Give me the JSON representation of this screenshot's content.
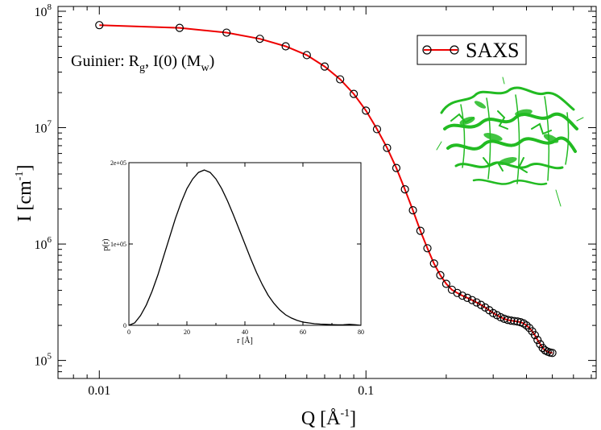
{
  "chart_data": [
    {
      "type": "scatter",
      "xscale": "log",
      "yscale": "log",
      "xlim": [
        0.007,
        0.73
      ],
      "ylim": [
        70000,
        110000000
      ],
      "xticks": [
        0.01,
        0.1
      ],
      "xtick_labels": [
        "0.01",
        "0.1"
      ],
      "yticks": [
        100000,
        1000000,
        10000000,
        100000000
      ],
      "ytick_labels": [
        {
          "base": "10",
          "exp": "5"
        },
        {
          "base": "10",
          "exp": "6"
        },
        {
          "base": "10",
          "exp": "7"
        },
        {
          "base": "10",
          "exp": "8"
        }
      ],
      "xlabel": {
        "main": "Q [Å",
        "sup": "-1",
        "close": "]"
      },
      "ylabel": {
        "main": "I [cm",
        "sup": "-1",
        "close": "]"
      },
      "annotation": {
        "t1": "Guinier: R",
        "s1": "g",
        "t2": ", I(0) (M",
        "s2": "w",
        "t3": ")"
      },
      "legend": {
        "position": "top-right",
        "label": "SAXS"
      },
      "series": [
        {
          "name": "SAXS",
          "line_color": "#ee0000",
          "marker": "open-circle",
          "marker_edge": "#000000",
          "x": [
            0.01,
            0.02,
            0.03,
            0.04,
            0.05,
            0.06,
            0.07,
            0.08,
            0.09,
            0.1,
            0.11,
            0.12,
            0.13,
            0.14,
            0.15,
            0.16,
            0.17,
            0.18,
            0.19,
            0.2,
            0.21,
            0.22,
            0.23,
            0.24,
            0.25,
            0.26,
            0.27,
            0.28,
            0.29,
            0.3,
            0.31,
            0.32,
            0.33,
            0.34,
            0.35,
            0.36,
            0.37,
            0.38,
            0.39,
            0.4,
            0.41,
            0.42,
            0.43,
            0.44,
            0.45,
            0.46,
            0.47,
            0.48,
            0.49,
            0.5
          ],
          "y": [
            76000000,
            72000000,
            65500000,
            58000000,
            50000000,
            42000000,
            33500000,
            26000000,
            19500000,
            14000000,
            9700000,
            6700000,
            4500000,
            2950000,
            1950000,
            1300000,
            920000,
            680000,
            540000,
            455000,
            405000,
            380000,
            360000,
            345000,
            330000,
            315000,
            300000,
            285000,
            270000,
            255000,
            245000,
            235000,
            228000,
            223000,
            220000,
            218000,
            216000,
            213000,
            208000,
            200000,
            190000,
            178000,
            165000,
            150000,
            138000,
            128000,
            122000,
            119000,
            117000,
            116000
          ]
        }
      ]
    },
    {
      "type": "line",
      "xlabel": "r [Å]",
      "ylabel": "p(r)",
      "xlim": [
        0,
        80
      ],
      "ylim": [
        0,
        200000
      ],
      "xticks": [
        0,
        20,
        40,
        60,
        80
      ],
      "yticks": [
        0,
        100000,
        200000
      ],
      "ytick_labels": [
        "0",
        "1e+05",
        "2e+05"
      ],
      "series": [
        {
          "x": [
            0,
            2,
            4,
            6,
            8,
            10,
            12,
            14,
            16,
            18,
            20,
            22,
            24,
            26,
            28,
            30,
            32,
            34,
            36,
            38,
            40,
            42,
            44,
            46,
            48,
            50,
            52,
            54,
            56,
            58,
            60,
            62,
            64,
            66,
            68,
            70,
            72,
            74,
            76,
            78,
            80
          ],
          "y": [
            0,
            3000,
            12000,
            25000,
            42000,
            62000,
            85000,
            108000,
            131000,
            151000,
            168000,
            180000,
            188000,
            191000,
            188000,
            180000,
            168000,
            153000,
            136000,
            118000,
            100000,
            82000,
            65000,
            50000,
            37000,
            27000,
            19000,
            13000,
            9000,
            6000,
            4000,
            3000,
            2000,
            1500,
            1200,
            900,
            600,
            700,
            1200,
            700,
            0
          ]
        }
      ]
    }
  ],
  "graphic": {
    "name": "protein-structure-cartoon",
    "color": "#22bb22"
  }
}
